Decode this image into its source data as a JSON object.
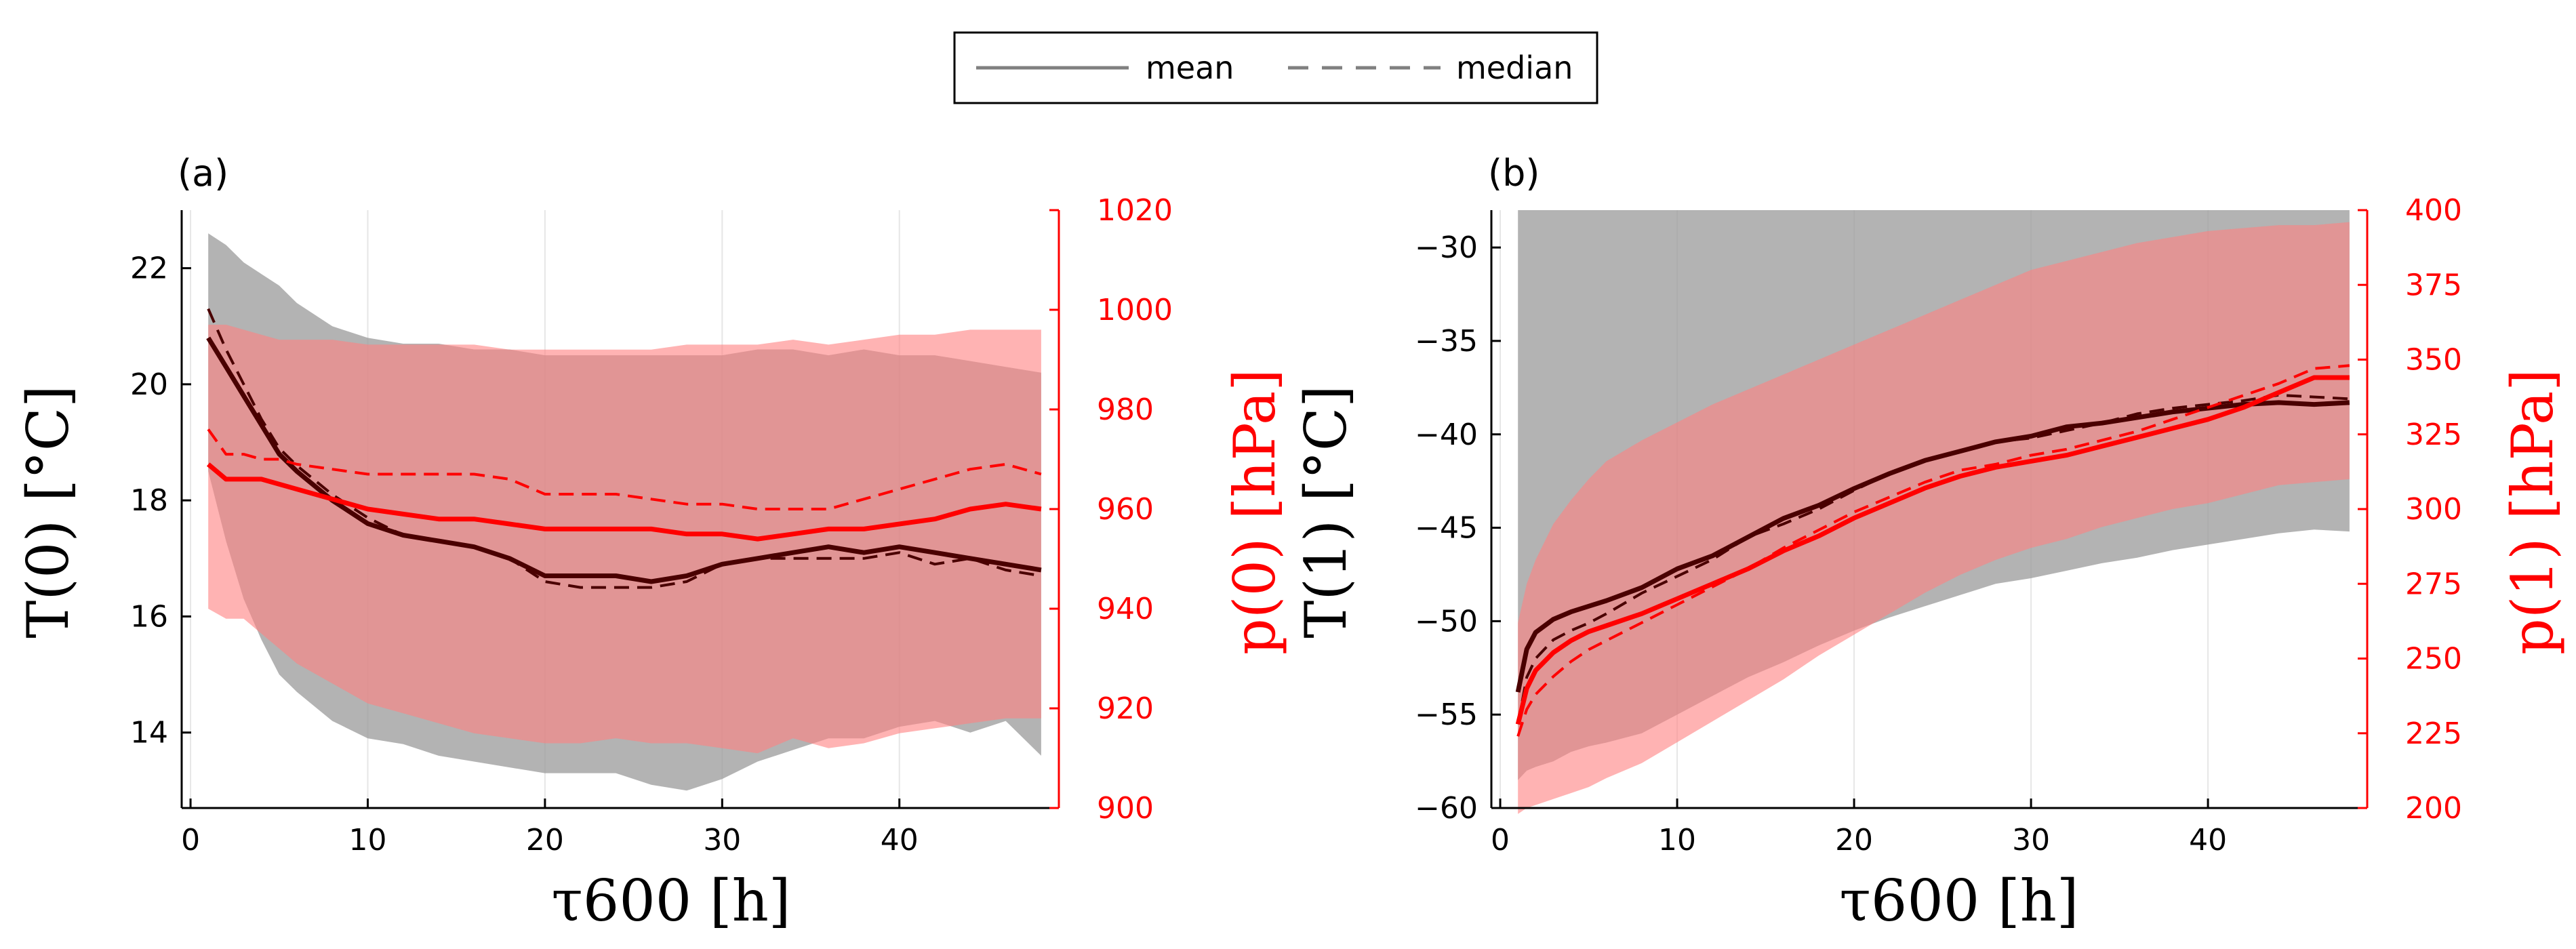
{
  "legend": {
    "mean_label": "mean",
    "median_label": "median"
  },
  "colors": {
    "temperature": "#4a0000",
    "pressure": "#ff0000",
    "temperature_band": "#999999",
    "pressure_band": "#ff8080",
    "pressure_axis": "#ff0000",
    "grid": "#e6e6e6"
  },
  "chart_data": [
    {
      "type": "line",
      "panel_label": "(a)",
      "xlabel": "τ600  [h]",
      "ylabel_left": "T(0)  [°C]",
      "ylabel_right": "p(0)  [hPa]",
      "xlim": [
        -0.5,
        49
      ],
      "ylim_left": [
        12.7,
        23
      ],
      "ylim_right": [
        900,
        1020
      ],
      "xticks": [
        0,
        10,
        20,
        30,
        40
      ],
      "yticks_left": [
        14,
        16,
        18,
        20,
        22
      ],
      "yticks_right": [
        900,
        920,
        940,
        960,
        980,
        1000,
        1020
      ],
      "grid": "x",
      "legend_placement": "top-center (above panels)",
      "series": [
        {
          "name": "mean",
          "quantity": "T(0)",
          "axis": "left",
          "style": "solid",
          "x": [
            1,
            2,
            3,
            4,
            5,
            6,
            8,
            10,
            12,
            14,
            16,
            18,
            20,
            22,
            24,
            26,
            28,
            30,
            32,
            34,
            36,
            38,
            40,
            42,
            44,
            46,
            48
          ],
          "y": [
            20.8,
            20.3,
            19.8,
            19.3,
            18.8,
            18.5,
            18.0,
            17.6,
            17.4,
            17.3,
            17.2,
            17.0,
            16.7,
            16.7,
            16.7,
            16.6,
            16.7,
            16.9,
            17.0,
            17.1,
            17.2,
            17.1,
            17.2,
            17.1,
            17.0,
            16.9,
            16.8
          ]
        },
        {
          "name": "median",
          "quantity": "T(0)",
          "axis": "left",
          "style": "dashed",
          "x": [
            1,
            2,
            3,
            4,
            5,
            6,
            8,
            10,
            12,
            14,
            16,
            18,
            20,
            22,
            24,
            26,
            28,
            30,
            32,
            34,
            36,
            38,
            40,
            42,
            44,
            46,
            48
          ],
          "y": [
            21.3,
            20.6,
            20.0,
            19.4,
            18.9,
            18.6,
            18.1,
            17.7,
            17.4,
            17.3,
            17.2,
            17.0,
            16.6,
            16.5,
            16.5,
            16.5,
            16.6,
            16.9,
            17.0,
            17.0,
            17.0,
            17.0,
            17.1,
            16.9,
            17.0,
            16.8,
            16.7
          ]
        },
        {
          "name": "mean",
          "quantity": "p(0)",
          "axis": "right",
          "style": "solid",
          "x": [
            1,
            2,
            3,
            4,
            5,
            6,
            8,
            10,
            12,
            14,
            16,
            18,
            20,
            22,
            24,
            26,
            28,
            30,
            32,
            34,
            36,
            38,
            40,
            42,
            44,
            46,
            48
          ],
          "y": [
            969,
            966,
            966,
            966,
            965,
            964,
            962,
            960,
            959,
            958,
            958,
            957,
            956,
            956,
            956,
            956,
            955,
            955,
            954,
            955,
            956,
            956,
            957,
            958,
            960,
            961,
            960
          ]
        },
        {
          "name": "median",
          "quantity": "p(0)",
          "axis": "right",
          "style": "dashed",
          "x": [
            1,
            2,
            3,
            4,
            5,
            6,
            8,
            10,
            12,
            14,
            16,
            18,
            20,
            22,
            24,
            26,
            28,
            30,
            32,
            34,
            36,
            38,
            40,
            42,
            44,
            46,
            48
          ],
          "y": [
            976,
            971,
            971,
            970,
            970,
            969,
            968,
            967,
            967,
            967,
            967,
            966,
            963,
            963,
            963,
            962,
            961,
            961,
            960,
            960,
            960,
            962,
            964,
            966,
            968,
            969,
            967
          ]
        },
        {
          "name": "",
          "quantity": "T(0) spread",
          "axis": "left",
          "style": "band",
          "x": [
            1,
            2,
            3,
            4,
            5,
            6,
            8,
            10,
            12,
            14,
            16,
            18,
            20,
            22,
            24,
            26,
            28,
            30,
            32,
            34,
            36,
            38,
            40,
            42,
            44,
            46,
            48
          ],
          "lower": [
            18.5,
            17.3,
            16.3,
            15.6,
            15.0,
            14.7,
            14.2,
            13.9,
            13.8,
            13.6,
            13.5,
            13.4,
            13.3,
            13.3,
            13.3,
            13.1,
            13.0,
            13.2,
            13.5,
            13.7,
            13.9,
            13.9,
            14.1,
            14.2,
            14.0,
            14.2,
            13.6
          ],
          "upper": [
            22.6,
            22.4,
            22.1,
            21.9,
            21.7,
            21.4,
            21.0,
            20.8,
            20.7,
            20.7,
            20.6,
            20.6,
            20.5,
            20.5,
            20.5,
            20.5,
            20.5,
            20.5,
            20.6,
            20.6,
            20.5,
            20.6,
            20.5,
            20.5,
            20.4,
            20.3,
            20.2
          ]
        },
        {
          "name": "",
          "quantity": "p(0) spread",
          "axis": "right",
          "style": "band",
          "x": [
            1,
            2,
            3,
            4,
            5,
            6,
            8,
            10,
            12,
            14,
            16,
            18,
            20,
            22,
            24,
            26,
            28,
            30,
            32,
            34,
            36,
            38,
            40,
            42,
            44,
            46,
            48
          ],
          "lower": [
            940,
            938,
            938,
            935,
            932,
            929,
            925,
            921,
            919,
            917,
            915,
            914,
            913,
            913,
            914,
            913,
            913,
            912,
            911,
            914,
            912,
            913,
            915,
            916,
            917,
            918,
            918
          ],
          "upper": [
            997,
            997,
            996,
            995,
            994,
            994,
            994,
            993,
            993,
            993,
            993,
            992,
            992,
            992,
            992,
            992,
            993,
            993,
            993,
            994,
            993,
            994,
            995,
            995,
            996,
            996,
            996
          ]
        }
      ]
    },
    {
      "type": "line",
      "panel_label": "(b)",
      "xlabel": "τ600  [h]",
      "ylabel_left": "T(1)  [°C]",
      "ylabel_right": "p(1)  [hPa]",
      "xlim": [
        -0.5,
        49
      ],
      "ylim_left": [
        -60,
        -28
      ],
      "ylim_right": [
        200,
        400
      ],
      "xticks": [
        0,
        10,
        20,
        30,
        40
      ],
      "yticks_left": [
        -60,
        -55,
        -50,
        -45,
        -40,
        -35,
        -30
      ],
      "yticks_right": [
        200,
        225,
        250,
        275,
        300,
        325,
        350,
        375,
        400
      ],
      "grid": "x",
      "series": [
        {
          "name": "mean",
          "quantity": "T(1)",
          "axis": "left",
          "style": "solid",
          "x": [
            1,
            1.5,
            2,
            3,
            4,
            5,
            6,
            8,
            10,
            12,
            14,
            16,
            18,
            20,
            22,
            24,
            26,
            28,
            30,
            32,
            34,
            36,
            38,
            40,
            42,
            44,
            46,
            48
          ],
          "y": [
            -53.8,
            -51.5,
            -50.6,
            -49.9,
            -49.5,
            -49.2,
            -48.9,
            -48.2,
            -47.2,
            -46.5,
            -45.5,
            -44.5,
            -43.8,
            -42.9,
            -42.1,
            -41.4,
            -40.9,
            -40.4,
            -40.1,
            -39.6,
            -39.4,
            -39.1,
            -38.8,
            -38.6,
            -38.4,
            -38.3,
            -38.4,
            -38.3
          ]
        },
        {
          "name": "median",
          "quantity": "T(1)",
          "axis": "left",
          "style": "dashed",
          "x": [
            1,
            1.5,
            2,
            3,
            4,
            5,
            6,
            8,
            10,
            12,
            14,
            16,
            18,
            20,
            22,
            24,
            26,
            28,
            30,
            32,
            34,
            36,
            38,
            40,
            42,
            44,
            46,
            48
          ],
          "y": [
            -55.5,
            -53.0,
            -52.0,
            -51.0,
            -50.5,
            -50.1,
            -49.6,
            -48.5,
            -47.6,
            -46.7,
            -45.5,
            -44.8,
            -44.0,
            -43.0,
            -42.1,
            -41.4,
            -40.9,
            -40.4,
            -40.2,
            -39.8,
            -39.4,
            -38.9,
            -38.6,
            -38.4,
            -38.2,
            -37.9,
            -38.0,
            -38.1
          ]
        },
        {
          "name": "mean",
          "quantity": "p(1)",
          "axis": "right",
          "style": "solid",
          "x": [
            1,
            1.5,
            2,
            3,
            4,
            5,
            6,
            8,
            10,
            12,
            14,
            16,
            18,
            20,
            22,
            24,
            26,
            28,
            30,
            32,
            34,
            36,
            38,
            40,
            42,
            44,
            46,
            48
          ],
          "y": [
            228,
            240,
            246,
            252,
            256,
            259,
            261,
            265,
            270,
            275,
            280,
            286,
            291,
            297,
            302,
            307,
            311,
            314,
            316,
            318,
            321,
            324,
            327,
            330,
            334,
            339,
            344,
            344
          ]
        },
        {
          "name": "median",
          "quantity": "p(1)",
          "axis": "right",
          "style": "dashed",
          "x": [
            1,
            1.5,
            2,
            3,
            4,
            5,
            6,
            8,
            10,
            12,
            14,
            16,
            18,
            20,
            22,
            24,
            26,
            28,
            30,
            32,
            34,
            36,
            38,
            40,
            42,
            44,
            46,
            48
          ],
          "y": [
            224,
            233,
            238,
            244,
            249,
            253,
            256,
            262,
            268,
            274,
            280,
            287,
            293,
            299,
            304,
            309,
            313,
            315,
            318,
            320,
            323,
            326,
            330,
            334,
            338,
            342,
            347,
            348
          ]
        },
        {
          "name": "",
          "quantity": "T(1) spread",
          "axis": "left",
          "style": "band",
          "x": [
            1,
            1.5,
            2,
            3,
            4,
            5,
            6,
            8,
            10,
            12,
            14,
            16,
            18,
            20,
            22,
            24,
            26,
            28,
            30,
            32,
            34,
            36,
            38,
            40,
            42,
            44,
            46,
            48
          ],
          "lower": [
            -58.5,
            -58.0,
            -57.8,
            -57.5,
            -57.0,
            -56.7,
            -56.5,
            -56.0,
            -55.0,
            -54.0,
            -53.0,
            -52.2,
            -51.3,
            -50.5,
            -49.8,
            -49.2,
            -48.6,
            -48.0,
            -47.7,
            -47.3,
            -46.9,
            -46.6,
            -46.2,
            -45.9,
            -45.6,
            -45.3,
            -45.1,
            -45.2
          ]
        },
        {
          "name": "",
          "quantity": "p(1) spread",
          "axis": "right",
          "style": "band",
          "x": [
            1,
            1.5,
            2,
            3,
            4,
            5,
            6,
            8,
            10,
            12,
            14,
            16,
            18,
            20,
            22,
            24,
            26,
            28,
            30,
            32,
            34,
            36,
            38,
            40,
            42,
            44,
            46,
            48
          ],
          "lower": [
            198,
            200,
            201,
            203,
            205,
            207,
            210,
            215,
            222,
            229,
            236,
            243,
            251,
            258,
            265,
            272,
            278,
            283,
            287,
            290,
            294,
            297,
            300,
            302,
            305,
            308,
            309,
            310
          ],
          "upper": [
            262,
            275,
            283,
            295,
            303,
            310,
            316,
            323,
            329,
            335,
            340,
            345,
            350,
            355,
            360,
            365,
            370,
            375,
            380,
            383,
            386,
            389,
            391,
            393,
            394,
            395,
            395,
            396
          ]
        }
      ]
    }
  ]
}
